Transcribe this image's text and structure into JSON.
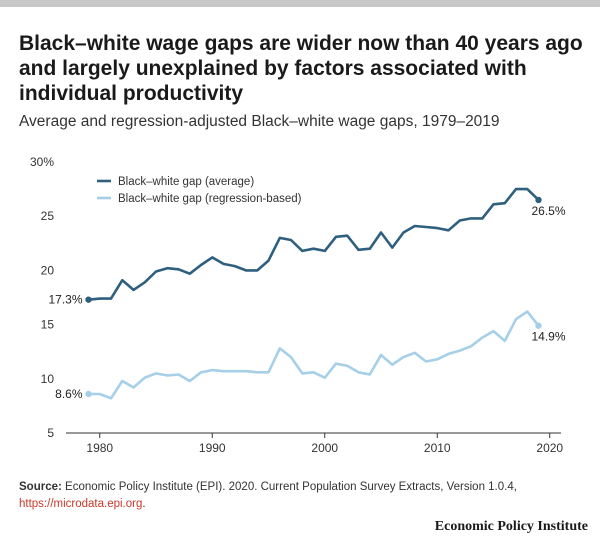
{
  "header": {
    "title": "Black–white wage gaps are wider now than 40 years ago and largely unexplained by factors associated with individual productivity",
    "subtitle": "Average and regression-adjusted Black–white wage gaps, 1979–2019"
  },
  "source": {
    "label": "Source:",
    "text": " Economic Policy Institute (EPI). 2020. Current Population Survey Extracts, Version 1.0.4, ",
    "link": "https://microdata.epi.org",
    "end": "."
  },
  "brand": "Economic Policy Institute",
  "colors": {
    "average": "#2e5f7f",
    "regression": "#a6cfe8",
    "axis": "#333333"
  },
  "chart_data": {
    "type": "line",
    "title": "",
    "xlabel": "",
    "ylabel": "",
    "xlim": [
      1977,
      2021
    ],
    "ylim": [
      5,
      30
    ],
    "grid": false,
    "legend": "top-left",
    "x_ticks": [
      1980,
      1990,
      2000,
      2010,
      2020
    ],
    "y_ticks": [
      {
        "value": 5,
        "label": "5"
      },
      {
        "value": 10,
        "label": "10"
      },
      {
        "value": 15,
        "label": "15"
      },
      {
        "value": 20,
        "label": "20"
      },
      {
        "value": 25,
        "label": "25"
      },
      {
        "value": 30,
        "label": "30%"
      }
    ],
    "x": [
      1979,
      1980,
      1981,
      1982,
      1983,
      1984,
      1985,
      1986,
      1987,
      1988,
      1989,
      1990,
      1991,
      1992,
      1993,
      1994,
      1995,
      1996,
      1997,
      1998,
      1999,
      2000,
      2001,
      2002,
      2003,
      2004,
      2005,
      2006,
      2007,
      2008,
      2009,
      2010,
      2011,
      2012,
      2013,
      2014,
      2015,
      2016,
      2017,
      2018,
      2019
    ],
    "series": [
      {
        "name": "Black–white gap (average)",
        "color": "#2e5f7f",
        "values": [
          17.3,
          17.4,
          17.4,
          19.1,
          18.2,
          18.9,
          19.9,
          20.2,
          20.1,
          19.7,
          20.5,
          21.2,
          20.6,
          20.4,
          20.0,
          20.0,
          20.9,
          23.0,
          22.8,
          21.8,
          22.0,
          21.8,
          23.1,
          23.2,
          21.9,
          22.0,
          23.5,
          22.1,
          23.5,
          24.1,
          24.0,
          23.9,
          23.7,
          24.6,
          24.8,
          24.8,
          26.1,
          26.2,
          27.5,
          27.5,
          26.5
        ],
        "end_labels": {
          "start": "17.3%",
          "end": "26.5%"
        }
      },
      {
        "name": "Black–white gap (regression-based)",
        "color": "#a6cfe8",
        "values": [
          8.6,
          8.6,
          8.2,
          9.8,
          9.2,
          10.1,
          10.5,
          10.3,
          10.4,
          9.8,
          10.6,
          10.8,
          10.7,
          10.7,
          10.7,
          10.6,
          10.6,
          12.8,
          12.0,
          10.5,
          10.6,
          10.1,
          11.4,
          11.2,
          10.6,
          10.4,
          12.2,
          11.3,
          12.0,
          12.4,
          11.6,
          11.8,
          12.3,
          12.6,
          13.0,
          13.8,
          14.4,
          13.5,
          15.5,
          16.2,
          14.9
        ],
        "end_labels": {
          "start": "8.6%",
          "end": "14.9%"
        }
      }
    ]
  }
}
